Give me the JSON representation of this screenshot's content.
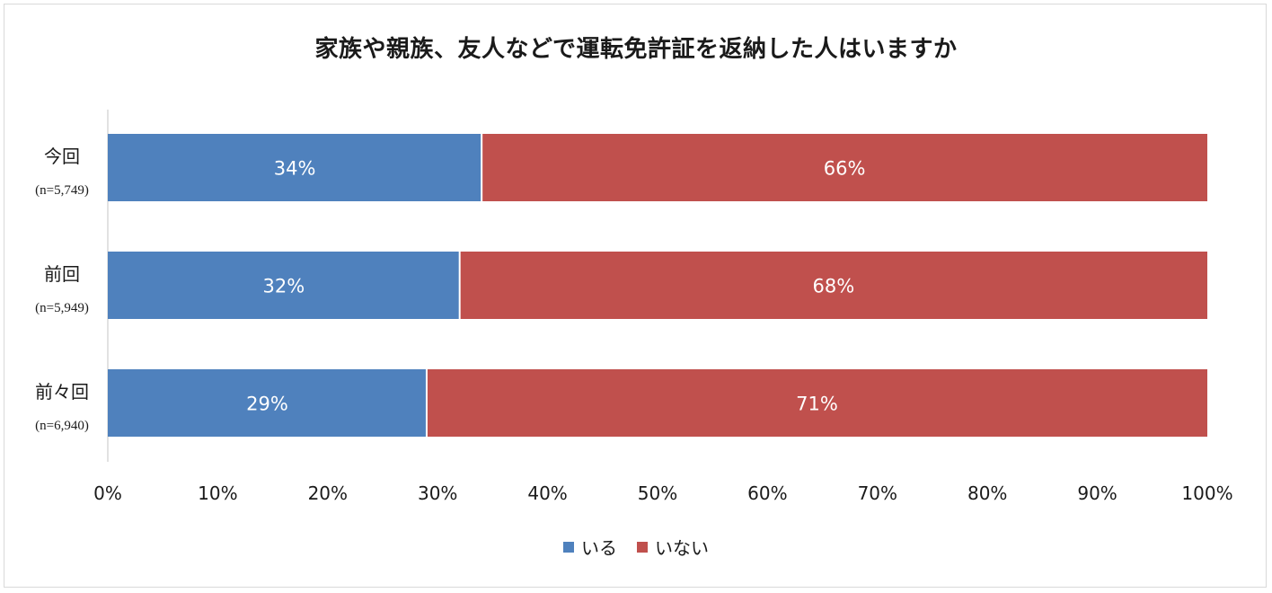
{
  "chart_data": {
    "type": "bar",
    "orientation": "horizontal",
    "stacked": "percent",
    "title": "家族や親族、友人などで運転免許証を返納した人はいますか",
    "categories": [
      {
        "label": "今回",
        "n": "(n=5,749)"
      },
      {
        "label": "前回",
        "n": "(n=5,949)"
      },
      {
        "label": "前々回",
        "n": "(n=6,940)"
      }
    ],
    "series": [
      {
        "name": "いる",
        "color": "#4f81bd",
        "values": [
          34,
          32,
          29
        ],
        "labels": [
          "34%",
          "32%",
          "29%"
        ]
      },
      {
        "name": "いない",
        "color": "#c0504d",
        "values": [
          66,
          68,
          71
        ],
        "labels": [
          "66%",
          "68%",
          "71%"
        ]
      }
    ],
    "xlim": [
      0,
      100
    ],
    "xticks": [
      "0%",
      "10%",
      "20%",
      "30%",
      "40%",
      "50%",
      "60%",
      "70%",
      "80%",
      "90%",
      "100%"
    ],
    "grid": false,
    "legend_position": "bottom"
  }
}
